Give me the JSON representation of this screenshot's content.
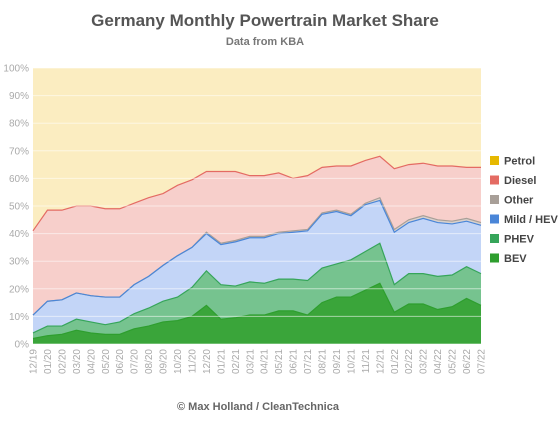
{
  "chart_data": {
    "type": "area",
    "stacking": "cumulative-percent",
    "title": "Germany Monthly Powertrain Market Share",
    "subtitle": "Data from KBA",
    "credit": "© Max Holland / CleanTechnica",
    "xlabel": "",
    "ylabel": "",
    "ylim": [
      0,
      100
    ],
    "yticks": [
      "0%",
      "10%",
      "20%",
      "30%",
      "40%",
      "50%",
      "60%",
      "70%",
      "80%",
      "90%",
      "100%"
    ],
    "grid": true,
    "legend_position": "right",
    "categories": [
      "12/19",
      "01/20",
      "02/20",
      "03/20",
      "04/20",
      "05/20",
      "06/20",
      "07/20",
      "08/20",
      "09/20",
      "10/20",
      "11/20",
      "12/20",
      "01/21",
      "02/21",
      "03/21",
      "04/21",
      "05/21",
      "06/21",
      "07/21",
      "08/21",
      "09/21",
      "10/21",
      "11/21",
      "12/21",
      "01/22",
      "02/22",
      "03/22",
      "04/22",
      "05/22",
      "06/22",
      "07/22"
    ],
    "x_tick_labels": [
      "12/19",
      "01/20",
      "02/20",
      "03/20",
      "04/20",
      "05/20",
      "06/20",
      "07/20",
      "08/20",
      "09/20",
      "10/20",
      "11/20",
      "12/20",
      "01/21",
      "02/21",
      "03/21",
      "04/21",
      "05/21",
      "06/21",
      "07/21",
      "08/21",
      "09/21",
      "10/21",
      "11/21",
      "12/21",
      "01/22",
      "02/22",
      "03/22",
      "04/22",
      "05/22",
      "06/22",
      "07/22"
    ],
    "series": [
      {
        "name": "BEV",
        "color": "#2e9e2e",
        "fill": "#3aa53a",
        "values": [
          2,
          3,
          3.5,
          5,
          4,
          3.5,
          3.5,
          5.5,
          6.5,
          8,
          8.5,
          10,
          14,
          9,
          9.5,
          10.5,
          10.5,
          12,
          12,
          10.5,
          15,
          17,
          17,
          19.5,
          22,
          11.5,
          14.5,
          14.5,
          12.5,
          13.5,
          16.5,
          14
        ]
      },
      {
        "name": "PHEV",
        "color": "#36a55a",
        "fill": "#76c38f",
        "values": [
          4,
          6.5,
          6.5,
          9,
          8,
          7,
          8,
          11,
          13,
          15.5,
          17,
          20.5,
          26.5,
          21.5,
          21,
          22.5,
          22,
          23.5,
          23.5,
          23,
          27.5,
          29,
          30.5,
          33.5,
          36.5,
          21.5,
          25.5,
          25.5,
          24.5,
          25,
          28,
          25.5
        ]
      },
      {
        "name": "Mild / HEV",
        "color": "#4a86d8",
        "fill": "#c3d5f7",
        "values": [
          10.5,
          15.5,
          16,
          18.5,
          17.5,
          17,
          17,
          21.5,
          24.5,
          28.5,
          32,
          35,
          40,
          36,
          37,
          38.5,
          38.5,
          40,
          40.5,
          41,
          47,
          48,
          46.5,
          50.5,
          52,
          40.5,
          44,
          45.5,
          44,
          43.5,
          44.5,
          43
        ]
      },
      {
        "name": "Other",
        "color": "#a89f98",
        "fill": "#d9d1cc",
        "values": [
          10.5,
          15.5,
          16,
          18.5,
          17.5,
          17,
          17,
          21.5,
          24.5,
          28.5,
          32,
          35,
          40.5,
          36.5,
          37.5,
          39,
          39,
          40.5,
          41,
          41.5,
          47.5,
          48.5,
          47,
          51,
          53,
          41.5,
          45,
          46.5,
          45,
          44.5,
          45.5,
          44
        ]
      },
      {
        "name": "Diesel",
        "color": "#e46b63",
        "fill": "#f7cfcb",
        "values": [
          41,
          48.5,
          48.5,
          50,
          50,
          49,
          49,
          51,
          53,
          54.5,
          57.5,
          59.5,
          62.5,
          62.5,
          62.5,
          61,
          61,
          62,
          60,
          61,
          64,
          64.5,
          64.5,
          66.5,
          68,
          63.5,
          65,
          65.5,
          64.5,
          64.5,
          64,
          64
        ]
      },
      {
        "name": "Petrol",
        "color": "#e6b800",
        "fill": "#fbedc1",
        "values": [
          100,
          100,
          100,
          100,
          100,
          100,
          100,
          100,
          100,
          100,
          100,
          100,
          100,
          100,
          100,
          100,
          100,
          100,
          100,
          100,
          100,
          100,
          100,
          100,
          100,
          100,
          100,
          100,
          100,
          100,
          100,
          100
        ]
      }
    ],
    "legend_order": [
      "Petrol",
      "Diesel",
      "Other",
      "Mild / HEV",
      "PHEV",
      "BEV"
    ]
  }
}
